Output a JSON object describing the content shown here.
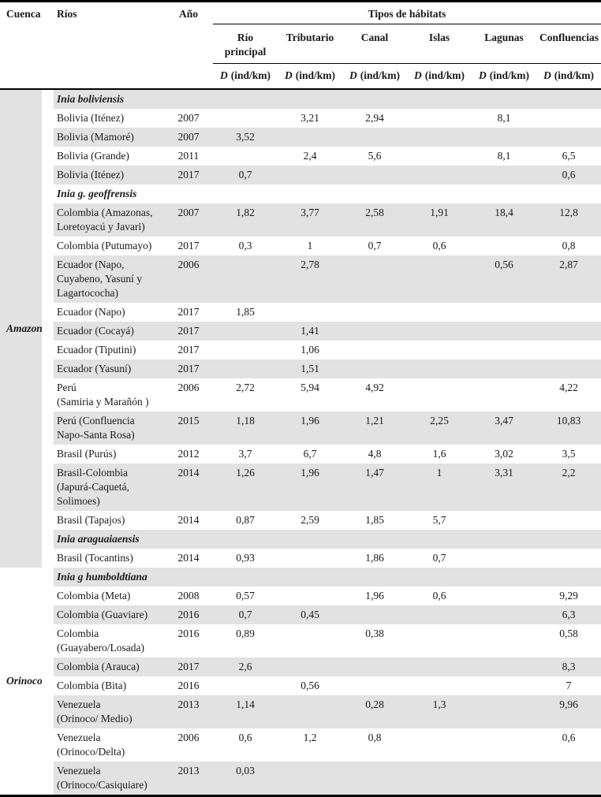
{
  "header": {
    "cuenca": "Cuenca",
    "rios": "Ríos",
    "ano": "Año",
    "tipos": "Tipos de hábitats",
    "habitats": [
      "Río principal",
      "Tributario",
      "Canal",
      "Islas",
      "Lagunas",
      "Confluencias"
    ],
    "d_symbol": "D",
    "d_unit": "(ind/km)"
  },
  "colors": {
    "row_shade": "#e2e2e2",
    "rule": "#000000"
  },
  "body": {
    "groups": [
      {
        "cuenca": "Amazonas",
        "rows": [
          {
            "species": "Inia boliviensis"
          },
          {
            "rios": "Bolivia (Iténez)",
            "ano": "2007",
            "d": [
              "",
              "3,21",
              "2,94",
              "",
              "8,1",
              ""
            ]
          },
          {
            "rios": "Bolivia (Mamoré)",
            "ano": "2007",
            "d": [
              "3,52",
              "",
              "",
              "",
              "",
              ""
            ]
          },
          {
            "rios": "Bolivia (Grande)",
            "ano": "2011",
            "d": [
              "",
              "2,4",
              "5,6",
              "",
              "8,1",
              "6,5"
            ]
          },
          {
            "rios": "Bolivia (Iténez)",
            "ano": "2017",
            "d": [
              "0,7",
              "",
              "",
              "",
              "",
              "0,6"
            ]
          },
          {
            "species": "Inia g. geoffrensis"
          },
          {
            "rios": "Colombia (Amazonas,\nLoretoyacú y Javari)",
            "ano": "2007",
            "d": [
              "1,82",
              "3,77",
              "2,58",
              "1,91",
              "18,4",
              "12,8"
            ]
          },
          {
            "rios": "Colombia (Putumayo)",
            "ano": "2017",
            "d": [
              "0,3",
              "1",
              "0,7",
              "0,6",
              "",
              "0,8"
            ]
          },
          {
            "rios": "Ecuador (Napo,\nCuyabeno, Yasuní y\nLagartococha)",
            "ano": "2006",
            "d": [
              "",
              "2,78",
              "",
              "",
              "0,56",
              "2,87"
            ]
          },
          {
            "rios": "Ecuador (Napo)",
            "ano": "2017",
            "d": [
              "1,85",
              "",
              "",
              "",
              "",
              ""
            ]
          },
          {
            "rios": "Ecuador (Cocayá)",
            "ano": "2017",
            "d": [
              "",
              "1,41",
              "",
              "",
              "",
              ""
            ]
          },
          {
            "rios": "Ecuador (Tiputini)",
            "ano": "2017",
            "d": [
              "",
              "1,06",
              "",
              "",
              "",
              ""
            ]
          },
          {
            "rios": "Ecuador (Yasuní)",
            "ano": "2017",
            "d": [
              "",
              "1,51",
              "",
              "",
              "",
              ""
            ]
          },
          {
            "rios": "Perú\n(Samiria y Marañón )",
            "ano": "2006",
            "d": [
              "2,72",
              "5,94",
              "4,92",
              "",
              "",
              "4,22"
            ]
          },
          {
            "rios": "Perú (Confluencia\nNapo-Santa Rosa)",
            "ano": "2015",
            "d": [
              "1,18",
              "1,96",
              "1,21",
              "2,25",
              "3,47",
              "10,83"
            ]
          },
          {
            "rios": "Brasil (Purús)",
            "ano": "2012",
            "d": [
              "3,7",
              "6,7",
              "4,8",
              "1,6",
              "3,02",
              "3,5"
            ]
          },
          {
            "rios": "Brasil-Colombia\n(Japurá-Caquetá,\nSolimoes)",
            "ano": "2014",
            "d": [
              "1,26",
              "1,96",
              "1,47",
              "1",
              "3,31",
              "2,2"
            ]
          },
          {
            "rios": "Brasil (Tapajos)",
            "ano": "2014",
            "d": [
              "0,87",
              "2,59",
              "1,85",
              "5,7",
              "",
              ""
            ]
          },
          {
            "species": "Inia araguaiaensis"
          },
          {
            "rios": "Brasil (Tocantins)",
            "ano": "2014",
            "d": [
              "0,93",
              "",
              "1,86",
              "0,7",
              "",
              ""
            ]
          }
        ]
      },
      {
        "cuenca": "Orinoco",
        "rows": [
          {
            "species": "Inia g humboldtiana"
          },
          {
            "rios": "Colombia (Meta)",
            "ano": "2008",
            "d": [
              "0,57",
              "",
              "1,96",
              "0,6",
              "",
              "9,29"
            ]
          },
          {
            "rios": "Colombia (Guaviare)",
            "ano": "2016",
            "d": [
              "0,7",
              "0,45",
              "",
              "",
              "",
              "6,3"
            ]
          },
          {
            "rios": "Colombia\n(Guayabero/Losada)",
            "ano": "2016",
            "d": [
              "0,89",
              "",
              "0,38",
              "",
              "",
              "0,58"
            ]
          },
          {
            "rios": "Colombia (Arauca)",
            "ano": "2017",
            "d": [
              "2,6",
              "",
              "",
              "",
              "",
              "8,3"
            ]
          },
          {
            "rios": "Colombia (Bita)",
            "ano": "2016",
            "d": [
              "",
              "0,56",
              "",
              "",
              "",
              "7"
            ]
          },
          {
            "rios": "Venezuela\n(Orinoco/ Medio)",
            "ano": "2013",
            "d": [
              "1,14",
              "",
              "0,28",
              "1,3",
              "",
              "9,96"
            ]
          },
          {
            "rios": "Venezuela\n(Orinoco/Delta)",
            "ano": "2006",
            "d": [
              "0,6",
              "1,2",
              "0,8",
              "",
              "",
              "0,6"
            ]
          },
          {
            "rios": "Venezuela\n(Orinoco/Casiquiare)",
            "ano": "2013",
            "d": [
              "0,03",
              "",
              "",
              "",
              "",
              ""
            ]
          }
        ]
      }
    ]
  }
}
